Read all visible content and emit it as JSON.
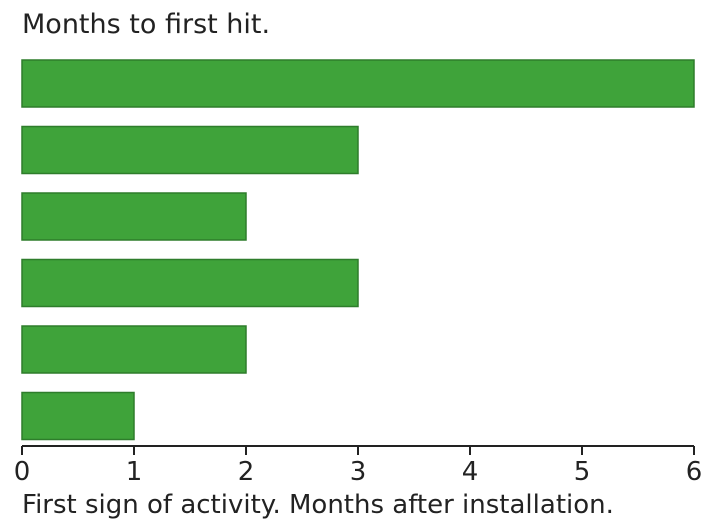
{
  "chart_data": {
    "type": "bar",
    "orientation": "horizontal",
    "title": "Months to first hit.",
    "xlabel": "First sign of activity.  Months after installation.",
    "ylabel": "",
    "categories": [
      "",
      "",
      "",
      "",
      "",
      ""
    ],
    "values": [
      6,
      3,
      2,
      3,
      2,
      1
    ],
    "xlim": [
      0,
      6
    ],
    "xticks": [
      "0",
      "1",
      "2",
      "3",
      "4",
      "5",
      "6"
    ],
    "grid": false,
    "legend": "none",
    "bar_color": "#3fa33a",
    "bar_edge_color": "#2e7d2b",
    "axis_color": "#222222"
  }
}
